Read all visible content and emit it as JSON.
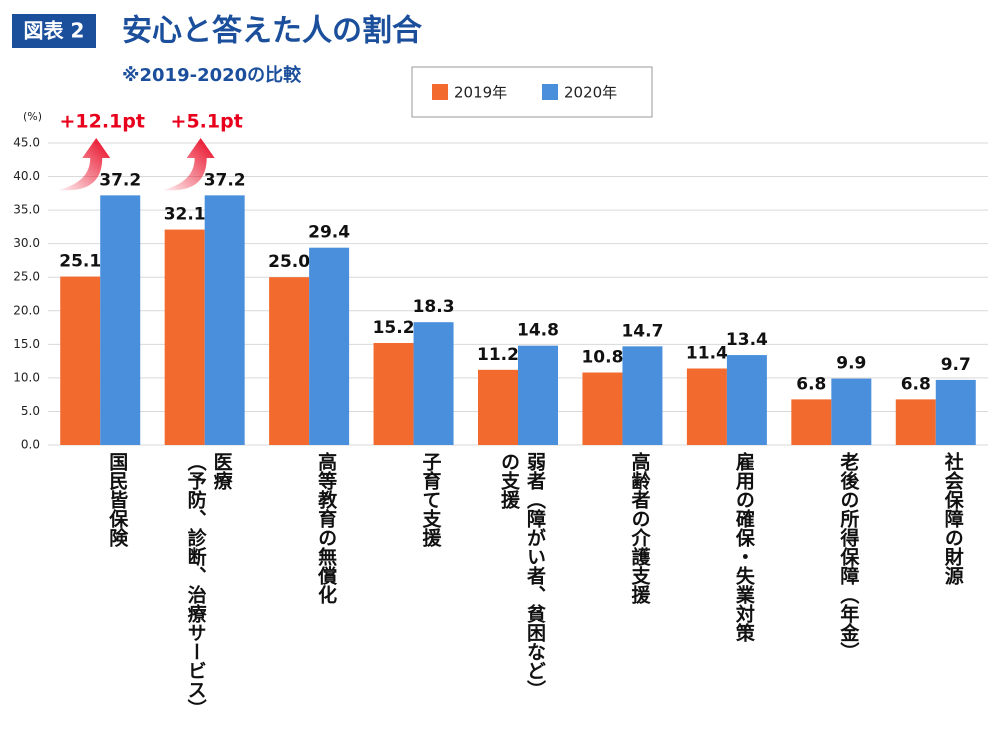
{
  "badge": "図表 2",
  "chart_data": {
    "type": "bar",
    "title": "安心と答えた人の割合",
    "subtitle": "※2019-2020の比較",
    "y_label": "(%)",
    "categories": [
      "国民皆保険",
      "医療\n（予防、診断、治療サービス）",
      "高等教育の無償化",
      "子育て支援",
      "弱者（障がい者、貧困など）\nの支援",
      "高齢者の介護支援",
      "雇用の確保・失業対策",
      "老後の所得保障（年金）",
      "社会保障の財源"
    ],
    "series": [
      {
        "name": "2019年",
        "color": "#f26a2e",
        "values": [
          25.1,
          32.1,
          25.0,
          15.2,
          11.2,
          10.8,
          11.4,
          6.8,
          6.8
        ],
        "value_labels": [
          "25.1",
          "32.1",
          "25.0",
          "15.2",
          "11.2",
          "10.8",
          "11.4",
          "6.8",
          "6.8"
        ]
      },
      {
        "name": "2020年",
        "color": "#4a8fdb",
        "values": [
          37.2,
          37.2,
          29.4,
          18.3,
          14.8,
          14.7,
          13.4,
          9.9,
          9.7
        ],
        "value_labels": [
          "37.2",
          "37.2",
          "29.4",
          "18.3",
          "14.8",
          "14.7",
          "13.4",
          "9.9",
          "9.7"
        ]
      }
    ],
    "annotations": [
      "+12.1pt",
      "+5.1pt"
    ],
    "ylim": [
      0,
      45
    ],
    "yticks": [
      {
        "value": 0,
        "label": "0.0"
      },
      {
        "value": 5,
        "label": "5.0"
      },
      {
        "value": 10,
        "label": "10.0"
      },
      {
        "value": 15,
        "label": "15.0"
      },
      {
        "value": 20,
        "label": "20.0"
      },
      {
        "value": 25,
        "label": "25.0"
      },
      {
        "value": 30,
        "label": "30.0"
      },
      {
        "value": 35,
        "label": "35.0"
      },
      {
        "value": 40,
        "label": "40.0"
      },
      {
        "value": 45,
        "label": "45.0"
      }
    ],
    "grid": true
  }
}
